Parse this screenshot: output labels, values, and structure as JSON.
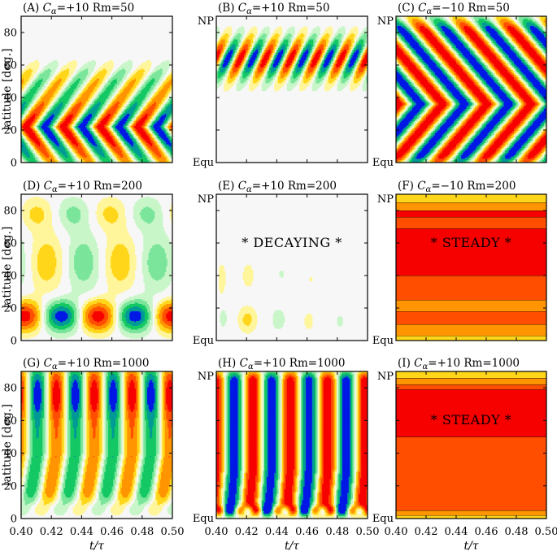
{
  "figure": {
    "ylabel": "latitude [deg.]",
    "xlabel": "t/τ",
    "np_label": "NP",
    "equ_label": "Equ",
    "xticks": [
      0.4,
      0.42,
      0.44,
      0.46,
      0.48,
      0.5
    ],
    "xtick_labels": [
      "0.40",
      "0.42",
      "0.44",
      "0.46",
      "0.48",
      "0.50"
    ],
    "yticks": [
      0,
      20,
      40,
      60,
      80
    ],
    "ytick_labels": [
      "0",
      "20",
      "40",
      "60",
      "80"
    ],
    "colors": {
      "frame": "#000000",
      "background": "#f7f7f7",
      "levels": [
        "#0018e6",
        "#009a96",
        "#14c864",
        "#7ae59b",
        "#c8f6c8",
        "#f7f7f7",
        "#fff59a",
        "#ffd61a",
        "#ff9500",
        "#ff4e00",
        "#f70000"
      ]
    }
  },
  "chart_data": [
    {
      "id": "A",
      "type": "heatmap",
      "title": "(A) Cα=+10  Rm=50",
      "title_prefix": "(A) ",
      "c_sign": "+10",
      "rm": "Rm=50",
      "annotation": "",
      "xlim": [
        0.4,
        0.5
      ],
      "ylim": [
        0,
        90
      ],
      "xlabel": "t/τ",
      "ylabel": "latitude [deg.]",
      "pattern": "low-latitude dynamo wave with poleward tilted branches between 0 and 65 deg"
    },
    {
      "id": "B",
      "type": "heatmap",
      "title": "(B) Cα=+10  Rm=50",
      "title_prefix": "(B) ",
      "c_sign": "+10",
      "rm": "Rm=50",
      "annotation": "",
      "xlim": [
        0.4,
        0.5
      ],
      "ylim": [
        0,
        90
      ],
      "xlabel": "t/τ",
      "ylabel": "latitude [deg.]",
      "pattern": "high-latitude oscillation confined to 35-85 deg"
    },
    {
      "id": "C",
      "type": "heatmap",
      "title": "(C) Cα=−10  Rm=50",
      "title_prefix": "(C) ",
      "c_sign": "−10",
      "rm": "Rm=50",
      "annotation": "",
      "xlim": [
        0.4,
        0.5
      ],
      "ylim": [
        0,
        90
      ],
      "xlabel": "t/τ",
      "ylabel": "latitude [deg.]",
      "pattern": "chevron shaped migrating bands over 0-85 deg"
    },
    {
      "id": "D",
      "type": "heatmap",
      "title": "(D) Cα=+10  Rm=200",
      "title_prefix": "(D) ",
      "c_sign": "+10",
      "rm": "Rm=200",
      "annotation": "",
      "xlim": [
        0.4,
        0.5
      ],
      "ylim": [
        0,
        90
      ],
      "xlabel": "t/τ",
      "ylabel": "latitude [deg.]",
      "pattern": "irregular oscillation with strongest field near 15 deg"
    },
    {
      "id": "E",
      "type": "heatmap",
      "title": "(E) Cα=+10  Rm=200",
      "title_prefix": "(E) ",
      "c_sign": "+10",
      "rm": "Rm=200",
      "annotation": "* DECAYING *",
      "xlim": [
        0.4,
        0.5
      ],
      "ylim": [
        0,
        90
      ],
      "xlabel": "t/τ",
      "ylabel": "latitude [deg.]",
      "pattern": "decaying weak blobs"
    },
    {
      "id": "F",
      "type": "heatmap",
      "title": "(F) Cα=−10  Rm=200",
      "title_prefix": "(F) ",
      "c_sign": "−10",
      "rm": "Rm=200",
      "annotation": "* STEADY *",
      "xlim": [
        0.4,
        0.5
      ],
      "ylim": [
        0,
        90
      ],
      "xlabel": "t/τ",
      "ylabel": "latitude [deg.]",
      "pattern": "steady horizontal bands",
      "bands": [
        {
          "lat_from": 0,
          "lat_to": 3,
          "level": 7
        },
        {
          "lat_from": 3,
          "lat_to": 10,
          "level": 8
        },
        {
          "lat_from": 10,
          "lat_to": 18,
          "level": 9
        },
        {
          "lat_from": 18,
          "lat_to": 25,
          "level": 8
        },
        {
          "lat_from": 25,
          "lat_to": 40,
          "level": 9
        },
        {
          "lat_from": 40,
          "lat_to": 69,
          "level": 10
        },
        {
          "lat_from": 69,
          "lat_to": 76,
          "level": 9
        },
        {
          "lat_from": 76,
          "lat_to": 80,
          "level": 10
        },
        {
          "lat_from": 80,
          "lat_to": 85,
          "level": 8
        },
        {
          "lat_from": 85,
          "lat_to": 90,
          "level": 7
        }
      ]
    },
    {
      "id": "G",
      "type": "heatmap",
      "title": "(G) Cα=+10  Rm=1000",
      "title_prefix": "(G) ",
      "c_sign": "+10",
      "rm": "Rm=1000",
      "annotation": "",
      "xlim": [
        0.4,
        0.5
      ],
      "ylim": [
        0,
        90
      ],
      "xlabel": "t/τ",
      "ylabel": "latitude [deg.]",
      "pattern": "vertical columns with maxima near 75 deg"
    },
    {
      "id": "H",
      "type": "heatmap",
      "title": "(H) Cα=+10  Rm=1000",
      "title_prefix": "(H) ",
      "c_sign": "+10",
      "rm": "Rm=1000",
      "annotation": "",
      "xlim": [
        0.4,
        0.5
      ],
      "ylim": [
        0,
        90
      ],
      "xlabel": "t/τ",
      "ylabel": "latitude [deg.]",
      "pattern": "strong vertical columns spanning 5-85 deg"
    },
    {
      "id": "I",
      "type": "heatmap",
      "title": "(I) Cα=+10  Rm=1000",
      "title_prefix": "(I) ",
      "c_sign": "+10",
      "rm": "Rm=1000",
      "annotation": "* STEADY *",
      "xlim": [
        0.4,
        0.5
      ],
      "ylim": [
        0,
        90
      ],
      "xlabel": "t/τ",
      "ylabel": "latitude [deg.]",
      "pattern": "steady horizontal bands",
      "bands": [
        {
          "lat_from": 0,
          "lat_to": 2,
          "level": 7
        },
        {
          "lat_from": 2,
          "lat_to": 5,
          "level": 8
        },
        {
          "lat_from": 5,
          "lat_to": 50,
          "level": 9
        },
        {
          "lat_from": 50,
          "lat_to": 79,
          "level": 10
        },
        {
          "lat_from": 79,
          "lat_to": 82,
          "level": 9
        },
        {
          "lat_from": 82,
          "lat_to": 86,
          "level": 8
        },
        {
          "lat_from": 86,
          "lat_to": 90,
          "level": 7
        }
      ]
    }
  ]
}
